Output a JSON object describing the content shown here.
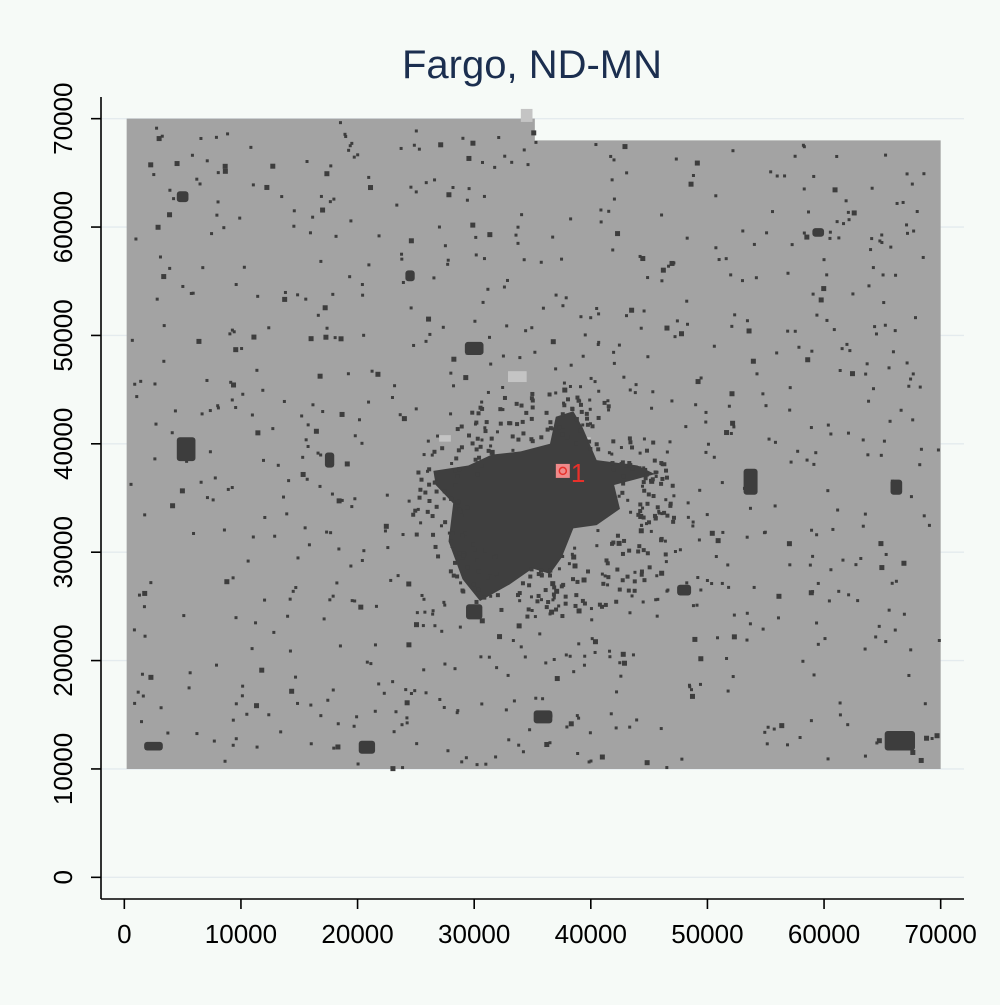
{
  "chart_data": {
    "type": "heatmap",
    "title": "Fargo, ND-MN",
    "xlabel": "",
    "ylabel": "",
    "xlim": [
      -2000,
      72000
    ],
    "ylim": [
      -2000,
      72000
    ],
    "x_ticks": [
      "0",
      "10000",
      "20000",
      "30000",
      "40000",
      "50000",
      "60000",
      "70000"
    ],
    "y_ticks": [
      "0",
      "10000",
      "20000",
      "30000",
      "40000",
      "50000",
      "60000",
      "70000"
    ],
    "grid": true,
    "legend": "none",
    "study_area": {
      "polygon": [
        [
          200,
          10000
        ],
        [
          70000,
          10000
        ],
        [
          70000,
          68000
        ],
        [
          35200,
          68000
        ],
        [
          35200,
          70000
        ],
        [
          200,
          70000
        ]
      ],
      "color": "#a3a3a3"
    },
    "urban_core": {
      "polygon": [
        [
          26500,
          37500
        ],
        [
          29500,
          38000
        ],
        [
          31500,
          39000
        ],
        [
          34000,
          39300
        ],
        [
          36500,
          40000
        ],
        [
          37000,
          42500
        ],
        [
          38500,
          43000
        ],
        [
          39300,
          41500
        ],
        [
          40500,
          38500
        ],
        [
          44000,
          38000
        ],
        [
          45500,
          37200
        ],
        [
          42000,
          36200
        ],
        [
          42500,
          34000
        ],
        [
          40500,
          32500
        ],
        [
          38500,
          32200
        ],
        [
          37500,
          29500
        ],
        [
          36500,
          28000
        ],
        [
          35000,
          28500
        ],
        [
          33000,
          27000
        ],
        [
          30500,
          25500
        ],
        [
          29000,
          27500
        ],
        [
          27800,
          31000
        ],
        [
          28200,
          34500
        ],
        [
          26700,
          36200
        ]
      ],
      "color": "#3f3f3f"
    },
    "clusters": [
      {
        "label": "",
        "x": 5300,
        "y": 39500,
        "w": 1600,
        "h": 2200
      },
      {
        "label": "",
        "x": 66500,
        "y": 12600,
        "w": 2600,
        "h": 1800
      },
      {
        "label": "",
        "x": 20800,
        "y": 12000,
        "w": 1400,
        "h": 1200
      },
      {
        "label": "",
        "x": 53700,
        "y": 36500,
        "w": 1200,
        "h": 2400
      },
      {
        "label": "",
        "x": 30000,
        "y": 24500,
        "w": 1400,
        "h": 1400
      },
      {
        "label": "",
        "x": 35900,
        "y": 14800,
        "w": 1600,
        "h": 1200
      },
      {
        "label": "",
        "x": 5000,
        "y": 62800,
        "w": 1000,
        "h": 1000
      },
      {
        "label": "",
        "x": 30000,
        "y": 48800,
        "w": 1600,
        "h": 1200
      },
      {
        "label": "",
        "x": 66200,
        "y": 36000,
        "w": 1000,
        "h": 1400
      },
      {
        "label": "",
        "x": 2500,
        "y": 12100,
        "w": 1600,
        "h": 800
      },
      {
        "label": "",
        "x": 48000,
        "y": 26500,
        "w": 1200,
        "h": 1000
      },
      {
        "label": "",
        "x": 24500,
        "y": 55500,
        "w": 800,
        "h": 1000
      },
      {
        "label": "",
        "x": 17600,
        "y": 38500,
        "w": 800,
        "h": 1400
      },
      {
        "label": "",
        "x": 59500,
        "y": 59500,
        "w": 1000,
        "h": 800
      }
    ],
    "light_patches": [
      {
        "x": 33700,
        "y": 46200,
        "w": 1600,
        "h": 1000
      },
      {
        "x": 27500,
        "y": 40500,
        "w": 1000,
        "h": 600
      },
      {
        "x": 34500,
        "y": 70300,
        "w": 1000,
        "h": 1200
      },
      {
        "x": 39500,
        "y": 40300,
        "w": 1000,
        "h": 600
      }
    ],
    "markers": [
      {
        "label": "1",
        "x": 37600,
        "y": 37500,
        "color": "#e8302a"
      }
    ]
  }
}
